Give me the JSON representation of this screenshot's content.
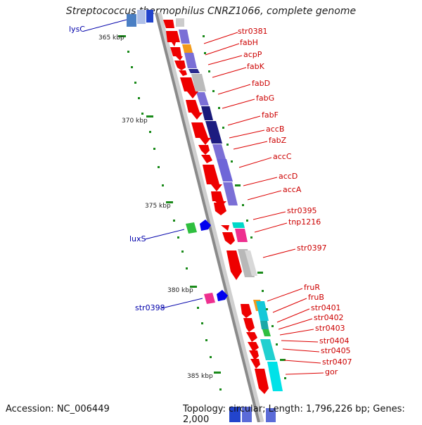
{
  "title": "Streptococcus thermophilus CNRZ1066, complete genome",
  "footer": {
    "accession": "Accession: NC_006449",
    "summary": "Topology: circular; Length: 1,796,226 bp; Genes: 2,000"
  },
  "colors": {
    "backbone": "#8a8a8a",
    "cds_red": "#ee0000",
    "tick": "#1a8a1a",
    "label_red": "#cc0000",
    "label_blue": "#0000aa"
  },
  "scale": [
    "365 kbp",
    "370 kbp",
    "375 kbp",
    "380 kbp",
    "385 kbp"
  ],
  "genes_right": [
    "str0381",
    "fabH",
    "acpP",
    "fabK",
    "fabD",
    "fabG",
    "fabF",
    "accB",
    "fabZ",
    "accC",
    "accD",
    "accA",
    "str0395",
    "tnp1216",
    "str0397",
    "fruR",
    "fruB",
    "str0401",
    "str0402",
    "str0403",
    "str0404",
    "str0405",
    "str0407",
    "gor"
  ],
  "genes_left": [
    "lysC",
    "luxS",
    "str0398"
  ]
}
